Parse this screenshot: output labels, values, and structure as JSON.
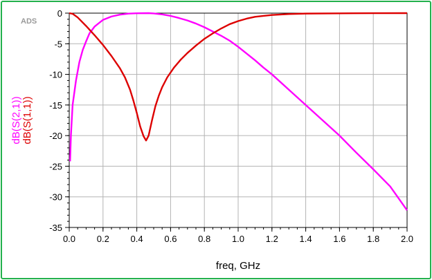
{
  "ads_tag": "ADS",
  "chart_data": {
    "type": "line",
    "xlabel": "freq, GHz",
    "xlim": [
      0.0,
      2.0
    ],
    "ylim": [
      -35,
      0
    ],
    "x_ticks": [
      "0.0",
      "0.2",
      "0.4",
      "0.6",
      "0.8",
      "1.0",
      "1.2",
      "1.4",
      "1.6",
      "1.8",
      "2.0"
    ],
    "y_ticks": [
      "0",
      "-5",
      "-10",
      "-15",
      "-20",
      "-25",
      "-30",
      "-35"
    ],
    "grid": true,
    "series": [
      {
        "name": "dB(S(2,1))",
        "color": "#ff00ff",
        "points": [
          [
            0.005,
            -24.2
          ],
          [
            0.01,
            -20
          ],
          [
            0.02,
            -15
          ],
          [
            0.04,
            -11
          ],
          [
            0.06,
            -8
          ],
          [
            0.08,
            -6
          ],
          [
            0.1,
            -4.6
          ],
          [
            0.12,
            -3.3
          ],
          [
            0.15,
            -2.2
          ],
          [
            0.2,
            -1.1
          ],
          [
            0.25,
            -0.55
          ],
          [
            0.3,
            -0.25
          ],
          [
            0.35,
            -0.08
          ],
          [
            0.4,
            -0.02
          ],
          [
            0.47,
            0
          ],
          [
            0.5,
            -0.05
          ],
          [
            0.55,
            -0.2
          ],
          [
            0.6,
            -0.45
          ],
          [
            0.65,
            -0.8
          ],
          [
            0.7,
            -1.2
          ],
          [
            0.75,
            -1.7
          ],
          [
            0.8,
            -2.3
          ],
          [
            0.85,
            -3.0
          ],
          [
            0.9,
            -3.7
          ],
          [
            0.95,
            -4.5
          ],
          [
            1.0,
            -5.5
          ],
          [
            1.05,
            -6.6
          ],
          [
            1.1,
            -7.7
          ],
          [
            1.15,
            -8.9
          ],
          [
            1.2,
            -10.0
          ],
          [
            1.3,
            -12.5
          ],
          [
            1.4,
            -15.0
          ],
          [
            1.5,
            -17.5
          ],
          [
            1.6,
            -20.0
          ],
          [
            1.7,
            -22.8
          ],
          [
            1.8,
            -25.5
          ],
          [
            1.9,
            -28.3
          ],
          [
            2.0,
            -32.2
          ]
        ]
      },
      {
        "name": "dB(S(1,1))",
        "color": "#dd0000",
        "points": [
          [
            0.0,
            0
          ],
          [
            0.02,
            -0.1
          ],
          [
            0.05,
            -0.7
          ],
          [
            0.1,
            -2.1
          ],
          [
            0.15,
            -3.6
          ],
          [
            0.2,
            -5.2
          ],
          [
            0.25,
            -7.0
          ],
          [
            0.3,
            -9.0
          ],
          [
            0.33,
            -10.5
          ],
          [
            0.36,
            -12.5
          ],
          [
            0.38,
            -14.3
          ],
          [
            0.4,
            -16.3
          ],
          [
            0.42,
            -18.5
          ],
          [
            0.44,
            -20.1
          ],
          [
            0.455,
            -20.8
          ],
          [
            0.47,
            -20.0
          ],
          [
            0.49,
            -17.5
          ],
          [
            0.51,
            -15.2
          ],
          [
            0.53,
            -13.5
          ],
          [
            0.55,
            -12.1
          ],
          [
            0.58,
            -10.5
          ],
          [
            0.62,
            -8.9
          ],
          [
            0.66,
            -7.6
          ],
          [
            0.7,
            -6.5
          ],
          [
            0.75,
            -5.3
          ],
          [
            0.8,
            -4.2
          ],
          [
            0.85,
            -3.3
          ],
          [
            0.9,
            -2.5
          ],
          [
            0.95,
            -1.8
          ],
          [
            1.0,
            -1.3
          ],
          [
            1.05,
            -0.9
          ],
          [
            1.1,
            -0.6
          ],
          [
            1.2,
            -0.3
          ],
          [
            1.3,
            -0.15
          ],
          [
            1.4,
            -0.07
          ],
          [
            1.6,
            -0.03
          ],
          [
            1.8,
            -0.01
          ],
          [
            2.0,
            0
          ]
        ]
      }
    ]
  }
}
